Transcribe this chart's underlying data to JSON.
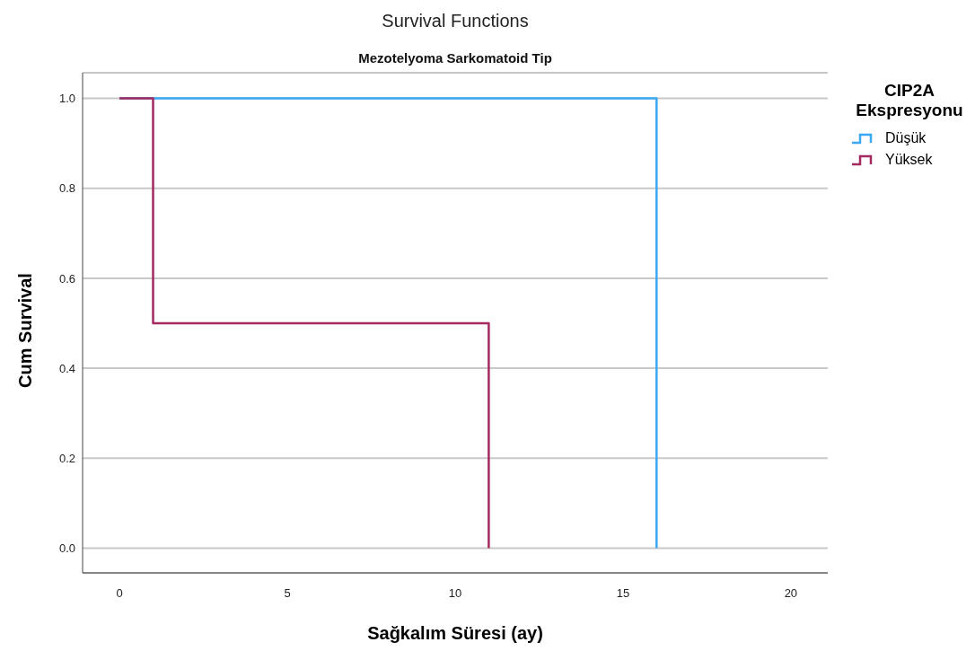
{
  "chart_data": {
    "type": "step",
    "title": "Survival Functions",
    "subtitle": "Mezotelyoma Sarkomatoid Tip",
    "xlabel": "Sağkalım Süresi (ay)",
    "ylabel": "Cum Survival",
    "legend_title": "CIP2A Ekspresyonu",
    "legend": "right",
    "series": [
      {
        "name": "Düşük",
        "color": "#3aa8f5",
        "x": [
          0,
          16
        ],
        "values": [
          1,
          0
        ]
      },
      {
        "name": "Yüksek",
        "color": "#a3295f",
        "x": [
          0,
          1,
          11
        ],
        "values": [
          1,
          0.5,
          0
        ]
      }
    ],
    "xlim": [
      -1.1,
      21.1
    ],
    "xticks": [
      0,
      5,
      10,
      15,
      20
    ],
    "ylim": [
      -0.055,
      1.057
    ],
    "yticks": [
      {
        "value": 0,
        "label": "0.0"
      },
      {
        "value": 0.2,
        "label": "0.2"
      },
      {
        "value": 0.4,
        "label": "0.4"
      },
      {
        "value": 0.6,
        "label": "0.6"
      },
      {
        "value": 0.8,
        "label": "0.8"
      },
      {
        "value": 1,
        "label": "1.0"
      }
    ],
    "grid": "y"
  }
}
